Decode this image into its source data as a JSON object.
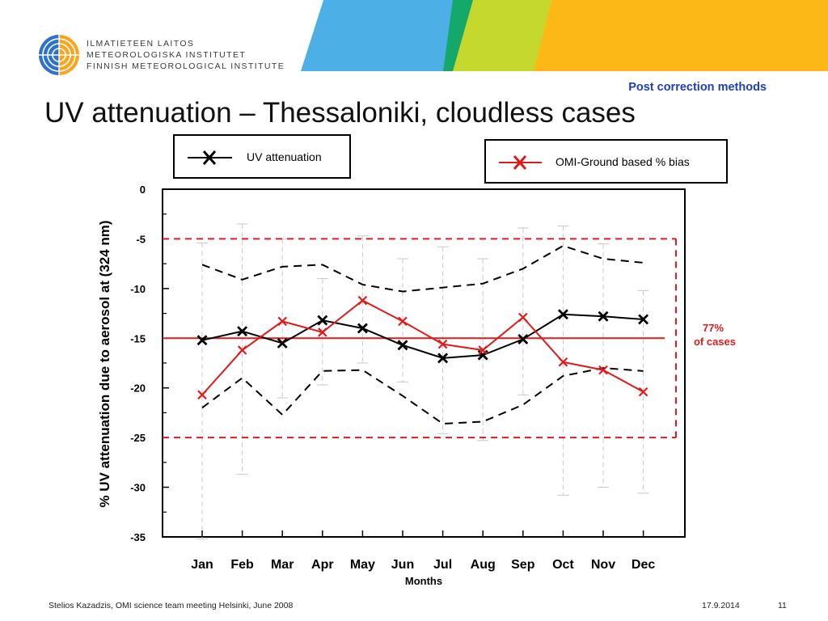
{
  "header": {
    "org_lines": [
      "ILMATIETEEN LAITOS",
      "METEOROLOGISKA INSTITUTET",
      "FINNISH METEOROLOGICAL INSTITUTE"
    ],
    "subtitle": "Post correction methods",
    "title": "UV attenuation – Thessaloniki, cloudless cases",
    "banner_colors": [
      "#4cb0e6",
      "#14a86b",
      "#c5d82e",
      "#fbb817"
    ]
  },
  "chart_data": {
    "type": "line",
    "categories": [
      "Jan",
      "Feb",
      "Mar",
      "Apr",
      "May",
      "Jun",
      "Jul",
      "Aug",
      "Sep",
      "Oct",
      "Nov",
      "Dec"
    ],
    "xlabel": "Months",
    "ylabel": "% UV attenuation due to aerosol at (324 nm)",
    "ylim": [
      -35,
      0
    ],
    "yticks": [
      0,
      -5,
      -10,
      -15,
      -20,
      -25,
      -30,
      -35
    ],
    "series": [
      {
        "name": "UV attenuation",
        "color": "#000000",
        "marker": "x",
        "values": [
          -15.2,
          -14.3,
          -15.5,
          -13.2,
          -14.0,
          -15.7,
          -17.0,
          -16.7,
          -15.1,
          -12.6,
          -12.8,
          -13.1
        ]
      },
      {
        "name": "OMI-Ground based % bias",
        "color": "#e01b1b",
        "marker": "x",
        "values": [
          -20.7,
          -16.2,
          -13.3,
          -14.4,
          -11.2,
          -13.3,
          -15.6,
          -16.2,
          -12.9,
          -17.4,
          -18.2,
          -20.4
        ]
      }
    ],
    "dashed_bands": {
      "upper": [
        -7.6,
        -9.1,
        -7.8,
        -7.6,
        -9.6,
        -10.3,
        -9.9,
        -9.5,
        -8.0,
        -5.7,
        -7.0,
        -7.4
      ],
      "lower": [
        -22.0,
        -19.0,
        -22.7,
        -18.3,
        -18.2,
        -20.8,
        -23.6,
        -23.4,
        -21.7,
        -18.8,
        -18.0,
        -18.3
      ]
    },
    "range_bars": {
      "top": [
        -5.4,
        -3.5,
        -5.0,
        -9.0,
        -4.7,
        -7.0,
        -5.8,
        -7.0,
        -3.9,
        -3.7,
        -5.5,
        -10.2
      ],
      "bottom": [
        -35.2,
        -28.7,
        -21.0,
        -19.7,
        -17.5,
        -19.4,
        -24.6,
        -25.3,
        -20.7,
        -30.8,
        -30.0,
        -30.6
      ]
    },
    "reference_line": {
      "value": -15,
      "color": "#e01b1b"
    },
    "reference_band": {
      "upper": -5,
      "lower": -25,
      "color": "#e01b1b"
    },
    "annotation": {
      "line1": "77%",
      "line2": "of cases",
      "color": "#e01b1b"
    }
  },
  "footer": {
    "left": "Stelios Kazadzis, OMI science team meeting Helsinki, June 2008",
    "date": "17.9.2014",
    "page": "11"
  }
}
